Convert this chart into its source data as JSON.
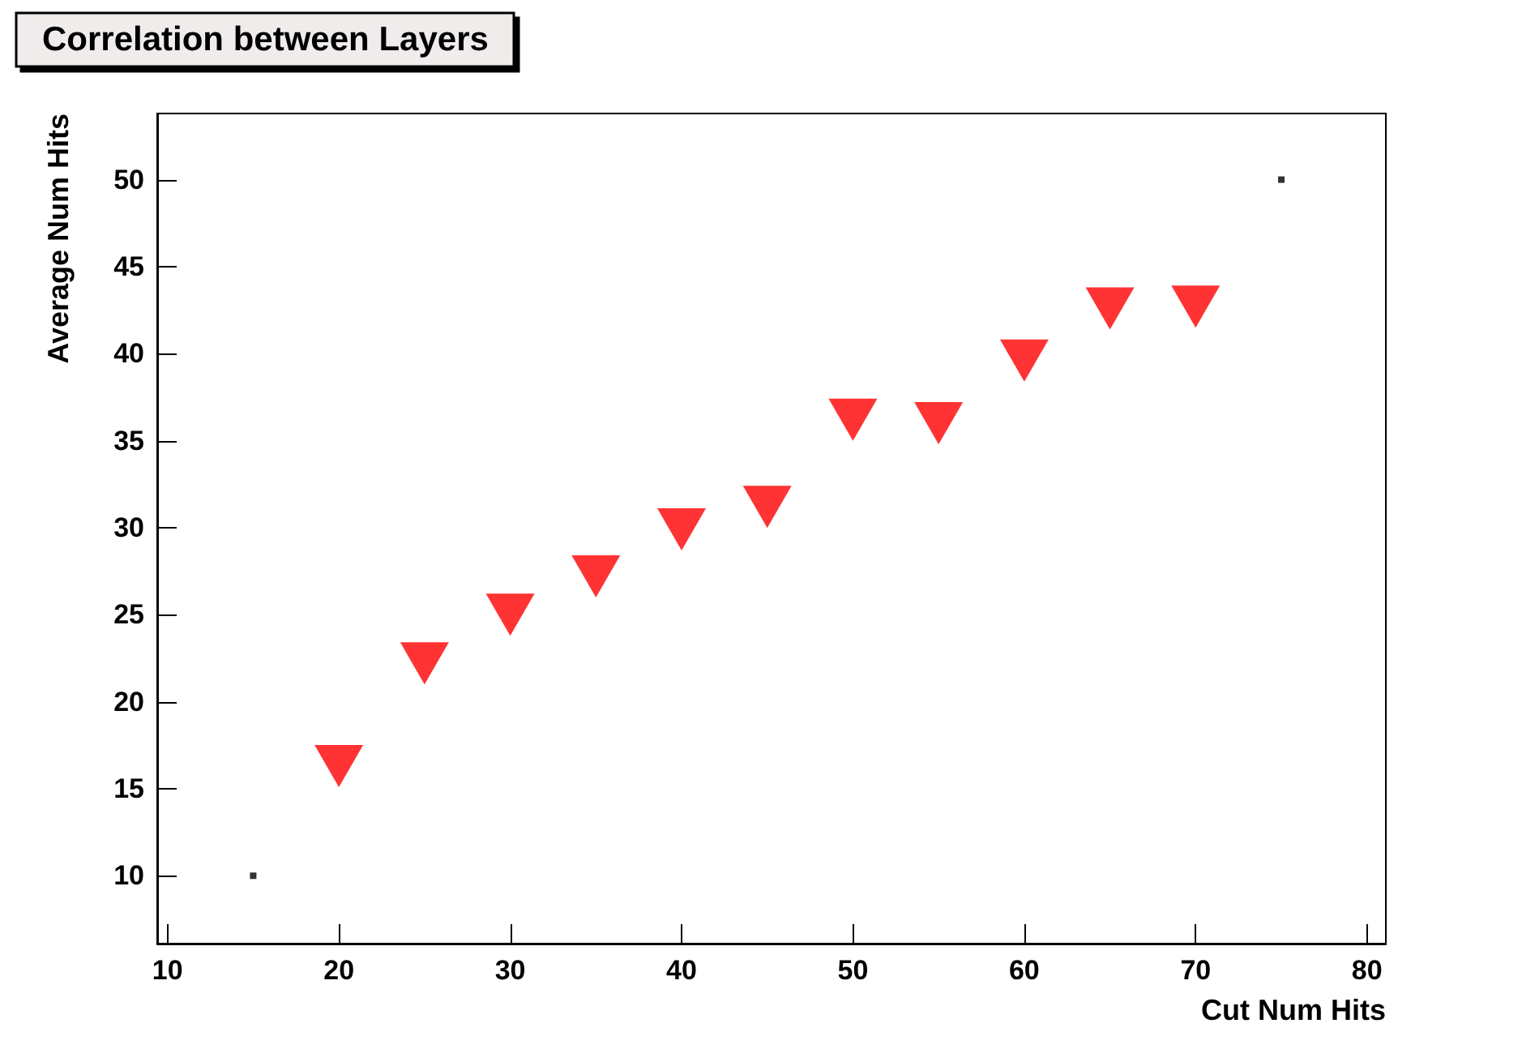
{
  "chart_data": {
    "type": "scatter",
    "title": "Correlation between Layers",
    "xlabel": "Cut Num Hits",
    "ylabel": "Average Num Hits",
    "marker": "triangle",
    "grid": false,
    "series": [
      {
        "color": "#ff0000",
        "x": [
          20,
          25,
          30,
          35,
          40,
          45,
          50,
          55,
          60,
          65,
          70
        ],
        "values": [
          16.3,
          22.2,
          25.0,
          27.2,
          29.9,
          31.2,
          36.2,
          36.0,
          39.6,
          42.6,
          42.7
        ]
      },
      {
        "color": "#000000",
        "marker": "square",
        "x": [
          15,
          75
        ],
        "values": [
          10,
          50
        ]
      }
    ],
    "xlim": [
      9.4,
      81.1
    ],
    "xticks": [
      10,
      20,
      30,
      40,
      50,
      60,
      70,
      80
    ],
    "ylim": [
      6.1,
      53.8
    ],
    "yticks": [
      10,
      15,
      20,
      25,
      30,
      35,
      40,
      45,
      50
    ]
  }
}
